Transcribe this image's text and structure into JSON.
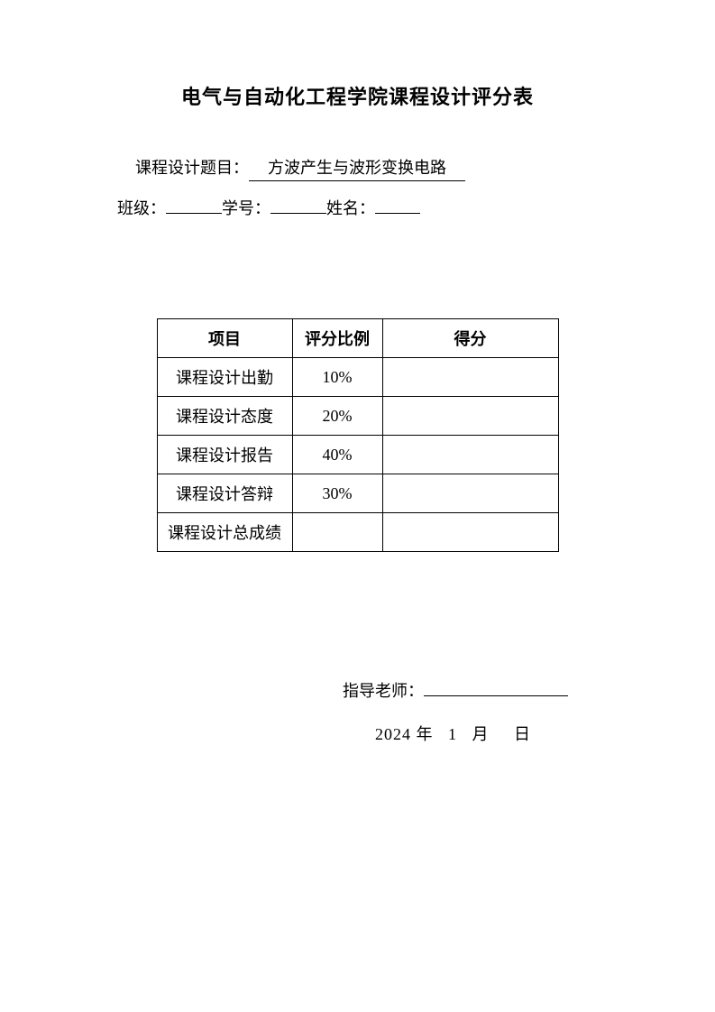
{
  "title": "电气与自动化工程学院课程设计评分表",
  "info": {
    "topic_label": "课程设计题目：",
    "topic_value": "方波产生与波形变换电路",
    "class_label": "班级：",
    "class_value": "",
    "student_id_label": "学号：",
    "student_id_value": "",
    "name_label": "姓名：",
    "name_value": ""
  },
  "table": {
    "type": "table",
    "headers": {
      "item": "项目",
      "ratio": "评分比例",
      "score": "得分"
    },
    "rows": [
      {
        "item": "课程设计出勤",
        "ratio": "10%",
        "score": ""
      },
      {
        "item": "课程设计态度",
        "ratio": "20%",
        "score": ""
      },
      {
        "item": "课程设计报告",
        "ratio": "40%",
        "score": ""
      },
      {
        "item": "课程设计答辩",
        "ratio": "30%",
        "score": ""
      },
      {
        "item": "课程设计总成绩",
        "ratio": "",
        "score": ""
      }
    ],
    "border_color": "#000000",
    "background_color": "#ffffff",
    "font_size_pt": 14
  },
  "footer": {
    "teacher_label": "指导老师：",
    "teacher_value": "",
    "date_year": "2024",
    "date_year_unit": "年",
    "date_month": "1",
    "date_month_unit": "月",
    "date_day": "",
    "date_day_unit": "日"
  }
}
